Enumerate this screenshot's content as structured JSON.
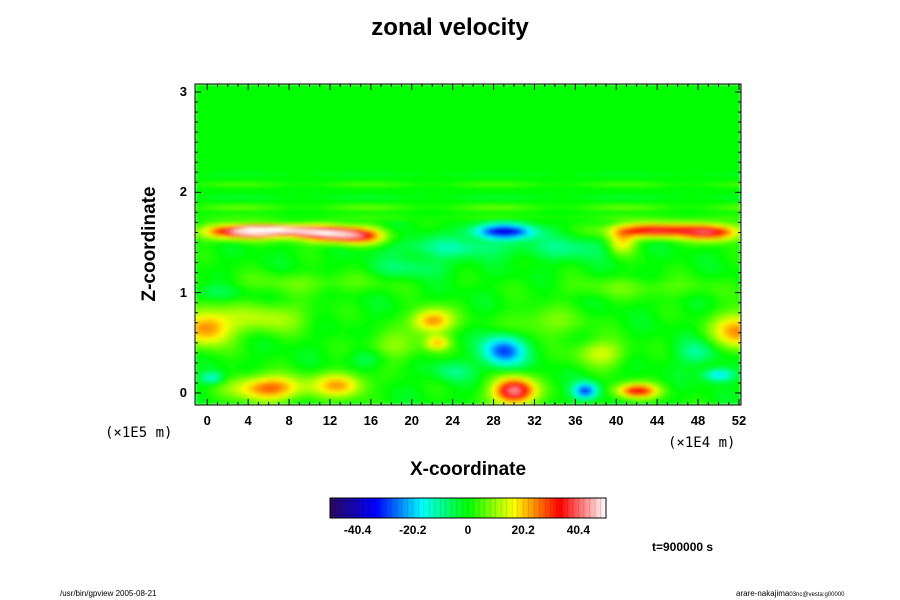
{
  "chart_data": {
    "type": "heatmap",
    "title": "zonal velocity",
    "xlabel": "X-coordinate",
    "ylabel": "Z-coordinate",
    "x_scale_note": "(×1E4 m)",
    "y_scale_note": "(×1E5 m)",
    "x_ticks": [
      "0",
      "4",
      "8",
      "12",
      "16",
      "20",
      "24",
      "28",
      "32",
      "36",
      "40",
      "44",
      "48",
      "52"
    ],
    "y_ticks": [
      "0",
      "1",
      "2",
      "3"
    ],
    "xlim": [
      -1.2,
      52.2
    ],
    "ylim": [
      -0.12,
      3.08
    ],
    "colorbar": {
      "ticks": [
        "-40.4",
        "-20.2",
        "0",
        "20.2",
        "40.4"
      ],
      "range": [
        -50.5,
        50.5
      ],
      "colormap": [
        "#2a0a5a",
        "#0000ff",
        "#00ffff",
        "#00ff00",
        "#ffff00",
        "#ff0000",
        "#ffffff"
      ]
    },
    "background_value": 0,
    "features": [
      {
        "x": 7,
        "z": 1.62,
        "v": 52,
        "rx": 4.5,
        "rz": 0.05
      },
      {
        "x": 12,
        "z": 1.58,
        "v": 38,
        "rx": 3.2,
        "rz": 0.07
      },
      {
        "x": 3,
        "z": 1.6,
        "v": 30,
        "rx": 3.5,
        "rz": 0.07
      },
      {
        "x": 15,
        "z": 1.56,
        "v": 25,
        "rx": 2.5,
        "rz": 0.08
      },
      {
        "x": 29,
        "z": 1.61,
        "v": -36,
        "rx": 3.0,
        "rz": 0.07
      },
      {
        "x": 44,
        "z": 1.62,
        "v": 38,
        "rx": 4.5,
        "rz": 0.07
      },
      {
        "x": 49.5,
        "z": 1.6,
        "v": 32,
        "rx": 2.5,
        "rz": 0.08
      },
      {
        "x": 40.5,
        "z": 1.5,
        "v": 20,
        "rx": 1.4,
        "rz": 0.12
      },
      {
        "x": 24,
        "z": 1.45,
        "v": -10,
        "rx": 6,
        "rz": 0.1
      },
      {
        "x": 36,
        "z": 1.45,
        "v": -8,
        "rx": 5,
        "rz": 0.12
      },
      {
        "x": 20,
        "z": 1.25,
        "v": -7,
        "rx": 4,
        "rz": 0.1
      },
      {
        "x": 0.5,
        "z": 1.0,
        "v": -6,
        "rx": 3,
        "rz": 0.08
      },
      {
        "x": 0,
        "z": 0.65,
        "v": 25,
        "rx": 2.5,
        "rz": 0.18
      },
      {
        "x": 52,
        "z": 0.62,
        "v": 25,
        "rx": 2.5,
        "rz": 0.18
      },
      {
        "x": 22,
        "z": 0.72,
        "v": 26,
        "rx": 2.0,
        "rz": 0.12
      },
      {
        "x": 22.5,
        "z": 0.5,
        "v": 18,
        "rx": 1.2,
        "rz": 0.07
      },
      {
        "x": 6,
        "z": 0.75,
        "v": 12,
        "rx": 4,
        "rz": 0.15
      },
      {
        "x": 18,
        "z": 0.45,
        "v": 10,
        "rx": 3,
        "rz": 0.15
      },
      {
        "x": 29,
        "z": 0.42,
        "v": -30,
        "rx": 2.0,
        "rz": 0.15
      },
      {
        "x": 38.5,
        "z": 0.4,
        "v": 14,
        "rx": 2.5,
        "rz": 0.13
      },
      {
        "x": 48,
        "z": 0.4,
        "v": -10,
        "rx": 2,
        "rz": 0.12
      },
      {
        "x": 30,
        "z": 0.02,
        "v": 45,
        "rx": 2.0,
        "rz": 0.13
      },
      {
        "x": 37,
        "z": 0.02,
        "v": -30,
        "rx": 1.2,
        "rz": 0.08
      },
      {
        "x": 42,
        "z": 0.02,
        "v": 35,
        "rx": 2.0,
        "rz": 0.07
      },
      {
        "x": 6,
        "z": 0.05,
        "v": 28,
        "rx": 3.5,
        "rz": 0.12
      },
      {
        "x": 13,
        "z": 0.08,
        "v": 22,
        "rx": 2.5,
        "rz": 0.12
      },
      {
        "x": 0.5,
        "z": 0.15,
        "v": -16,
        "rx": 1.2,
        "rz": 0.06
      },
      {
        "x": 50,
        "z": 0.18,
        "v": -20,
        "rx": 1.5,
        "rz": 0.06
      },
      {
        "x": 16,
        "z": 0.35,
        "v": -8,
        "rx": 2,
        "rz": 0.1
      },
      {
        "x": 24,
        "z": 0.22,
        "v": -8,
        "rx": 2,
        "rz": 0.1
      },
      {
        "x": 33,
        "z": 0.7,
        "v": 8,
        "rx": 4,
        "rz": 0.15
      },
      {
        "x": 10,
        "z": 1.1,
        "v": 6,
        "rx": 8,
        "rz": 0.1
      },
      {
        "x": 42,
        "z": 1.05,
        "v": 6,
        "rx": 8,
        "rz": 0.1
      }
    ],
    "bands": [
      {
        "z": 1.75,
        "v": 4,
        "rz": 0.03
      },
      {
        "z": 1.85,
        "v": 8,
        "rz": 0.025
      },
      {
        "z": 1.95,
        "v": -4,
        "rz": 0.02
      },
      {
        "z": 2.08,
        "v": 6,
        "rz": 0.02
      },
      {
        "z": 2.18,
        "v": -3,
        "rz": 0.02
      }
    ]
  },
  "time_label": "t=900000 s",
  "footer_left": "/usr/bin/gpview 2005-08-21",
  "footer_right": "arare-nakajima",
  "footer_right_sub": "03nc@vesta:g00000"
}
